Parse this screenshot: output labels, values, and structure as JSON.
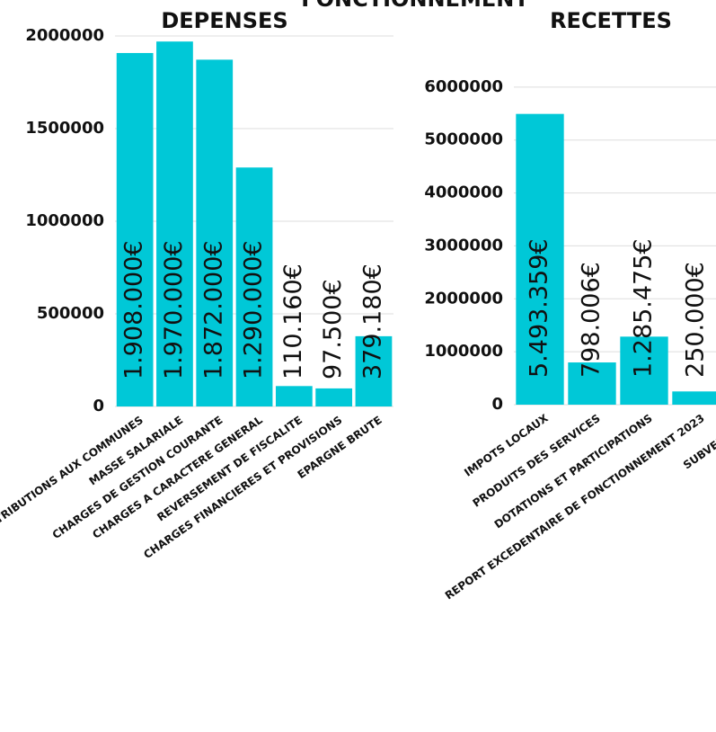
{
  "title": "FONCTIONNEMENT",
  "chart_data": [
    {
      "type": "bar",
      "title": "DEPENSES",
      "categories": [
        "ATTRIBUTIONS AUX COMMUNES",
        "MASSE SALARIALE",
        "CHARGES DE GESTION COURANTE",
        "CHARGES A CARACTERE GENERAL",
        "REVERSEMENT DE FISCALITE",
        "CHARGES FINANCIERES ET PROVISIONS",
        "EPARGNE BRUTE"
      ],
      "values": [
        1908000,
        1970000,
        1872000,
        1290000,
        110160,
        97500,
        379180
      ],
      "value_labels": [
        "1.908.000€",
        "1.970.000€",
        "1.872.000€",
        "1.290.000€",
        "110.160€",
        "97.500€",
        "379.180€"
      ],
      "color": "#00c8d7",
      "ylim": [
        0,
        2000000
      ],
      "yticks": [
        0,
        500000,
        1000000,
        1500000,
        2000000
      ],
      "grid": true
    },
    {
      "type": "bar",
      "title": "RECETTES",
      "categories": [
        "IMPOTS LOCAUX",
        "PRODUITS DES SERVICES",
        "DOTATIONS ET PARTICIPATIONS",
        "REPORT EXCEDENTAIRE DE FONCTIONNEMENT 2023",
        "SUBVENTIONS"
      ],
      "values": [
        5493359,
        798006,
        1285475,
        250000,
        null
      ],
      "value_labels": [
        "5.493.359€",
        "798.006€",
        "1.285.475€",
        "250.000€",
        null
      ],
      "color": "#00c8d7",
      "ylim": [
        0,
        7000000
      ],
      "yticks": [
        0,
        1000000,
        2000000,
        3000000,
        4000000,
        5000000,
        6000000
      ],
      "grid": true
    }
  ]
}
